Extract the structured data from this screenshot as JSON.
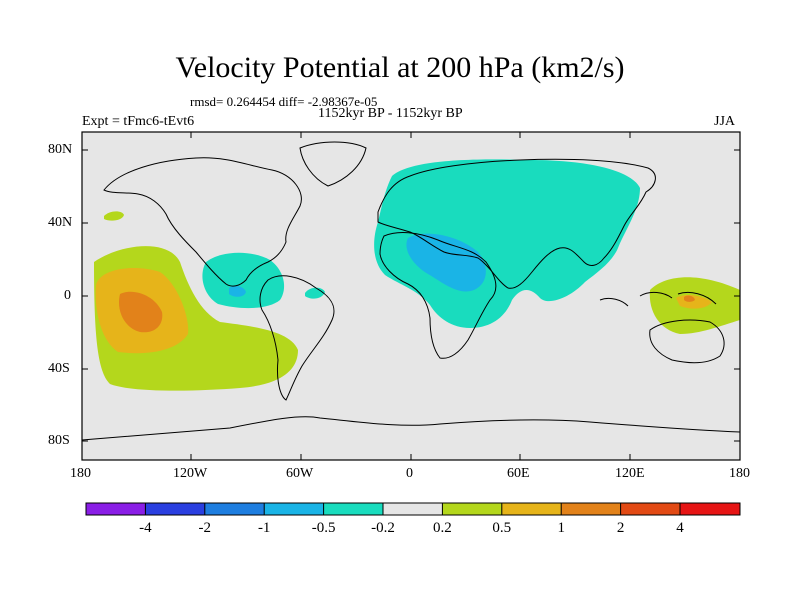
{
  "title": "Velocity Potential at 200 hPa (km2/s)",
  "stats": "rmsd= 0.264454  diff= -2.98367e-05",
  "experiment": "Expt = tFmc6-tEvt6",
  "period": "1152kyr BP - 1152kyr BP",
  "season": "JJA",
  "lat_labels": [
    "80N",
    "40N",
    "0",
    "40S",
    "80S"
  ],
  "lon_labels": [
    "180",
    "120W",
    "60W",
    "0",
    "60E",
    "120E",
    "180"
  ],
  "colorbar": {
    "labels": [
      "-4",
      "-2",
      "-1",
      "-0.5",
      "-0.2",
      "0.2",
      "0.5",
      "1",
      "2",
      "4"
    ],
    "colors": [
      "#8a1ee6",
      "#2a3fe0",
      "#1e7ee0",
      "#1ab4e6",
      "#19dcbe",
      "#e6e6e6",
      "#b4d71c",
      "#e6b41a",
      "#e2821a",
      "#e24a14",
      "#e61414"
    ]
  },
  "fields": {
    "background": "#e6e6e6",
    "neg_weak": "#19dcbe",
    "neg_mid": "#1ab4e6",
    "neg_strong": "#1e7ee0",
    "pos_weak": "#b4d71c",
    "pos_mid": "#e6b41a",
    "pos_strong": "#e2821a"
  }
}
